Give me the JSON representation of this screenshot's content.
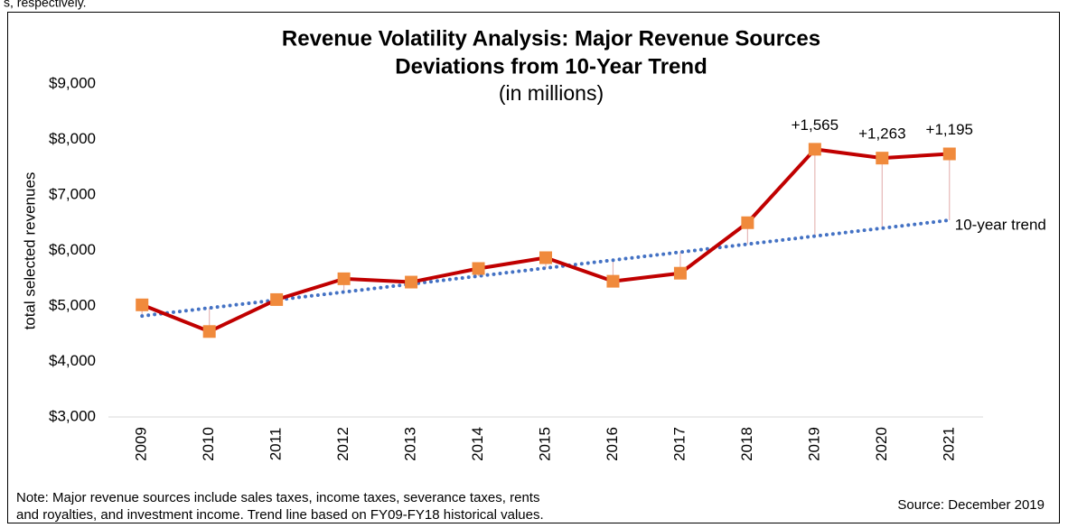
{
  "clipped_text": "s, respectively.",
  "chart_data": {
    "type": "line",
    "title": [
      "Revenue Volatility Analysis: Major Revenue Sources",
      "Deviations from 10-Year Trend"
    ],
    "subtitle": "(in millions)",
    "y_label": "total selected revenues",
    "note": [
      "Note: Major revenue sources include sales taxes, income taxes, severance taxes, rents",
      "and royalties, and investment income. Trend line based on FY09-FY18 historical values."
    ],
    "source": "Source: December 2019",
    "categories": [
      "2009",
      "2010",
      "2011",
      "2012",
      "2013",
      "2014",
      "2015",
      "2016",
      "2017",
      "2018",
      "2019",
      "2020",
      "2021"
    ],
    "series": [
      {
        "name": "total selected revenues",
        "color": "#c00000",
        "marker_color": "#f08a3c",
        "values": [
          5020,
          4540,
          5115,
          5490,
          5430,
          5675,
          5870,
          5445,
          5590,
          6500,
          7823,
          7664,
          7740
        ]
      },
      {
        "name": "10-year trend",
        "color": "#4472c4",
        "style": "dotted",
        "values": [
          4820,
          4964,
          5108,
          5251,
          5395,
          5539,
          5683,
          5826,
          5970,
          6114,
          6258,
          6401,
          6545
        ]
      }
    ],
    "deviation_color": "#e6b8b7",
    "deviation_labels": {
      "categories": [
        "2019",
        "2020",
        "2021"
      ],
      "labels": [
        "+1,565",
        "+1,263",
        "+1,195"
      ]
    },
    "ylim": [
      3000,
      9000
    ],
    "yticks": [
      {
        "value": 3000,
        "label": "$3,000"
      },
      {
        "value": 4000,
        "label": "$4,000"
      },
      {
        "value": 5000,
        "label": "$5,000"
      },
      {
        "value": 6000,
        "label": "$6,000"
      },
      {
        "value": 7000,
        "label": "$7,000"
      },
      {
        "value": 8000,
        "label": "$8,000"
      },
      {
        "value": 9000,
        "label": "$9,000"
      }
    ],
    "grid": false
  }
}
